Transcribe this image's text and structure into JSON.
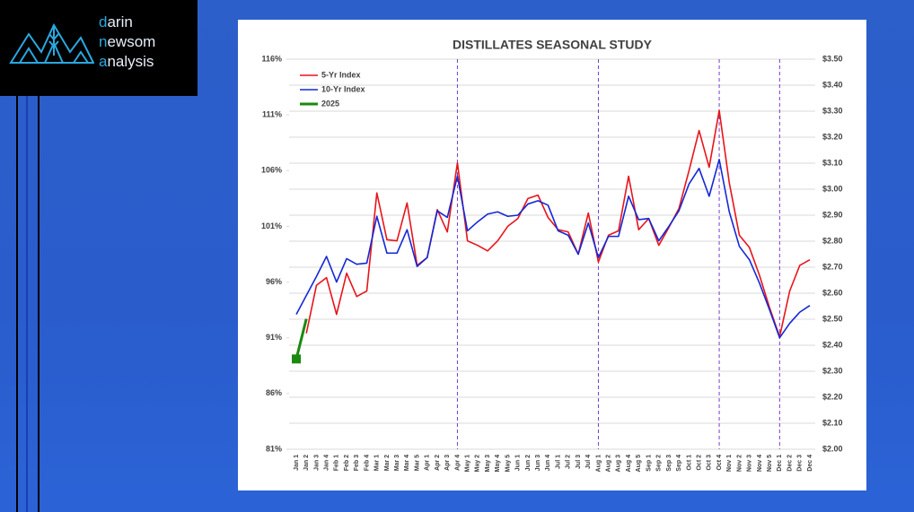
{
  "logo": {
    "lines": [
      "darin",
      "newsom",
      "analysis"
    ]
  },
  "chart_data": {
    "type": "line",
    "title": "DISTILLATES SEASONAL STUDY",
    "categories": [
      "Jan 1",
      "Jan 2",
      "Jan 3",
      "Jan 4",
      "Feb 1",
      "Feb 2",
      "Feb 3",
      "Feb 4",
      "Mar 1",
      "Mar 2",
      "Mar 3",
      "Mar 4",
      "Mar 5",
      "Apr 1",
      "Apr 2",
      "Apr 3",
      "Apr 4",
      "May 1",
      "May 2",
      "May 3",
      "May 4",
      "May 5",
      "Jun 1",
      "Jun 2",
      "Jun 3",
      "Jun 4",
      "Jul 1",
      "Jul 2",
      "Jul 3",
      "Jul 4",
      "Aug 1",
      "Aug 2",
      "Aug 3",
      "Aug 4",
      "Aug 5",
      "Sep 1",
      "Sep 2",
      "Sep 3",
      "Sep 4",
      "Oct 1",
      "Oct 2",
      "Oct 3",
      "Oct 4",
      "Nov 1",
      "Nov 2",
      "Nov 3",
      "Nov 4",
      "Nov 5",
      "Dec 1",
      "Dec 2",
      "Dec 3",
      "Dec 4"
    ],
    "series": [
      {
        "name": "5-Yr Index",
        "color": "#e8141b",
        "values": [
          null,
          91.4,
          95.7,
          96.4,
          93.1,
          96.8,
          94.7,
          95.2,
          104.0,
          99.8,
          99.7,
          103.1,
          97.5,
          98.2,
          102.5,
          100.5,
          106.7,
          99.7,
          99.3,
          98.8,
          99.7,
          101.0,
          101.7,
          103.5,
          103.8,
          101.8,
          100.7,
          100.5,
          98.5,
          102.2,
          97.8,
          100.2,
          100.6,
          105.5,
          100.7,
          101.7,
          99.3,
          100.9,
          102.6,
          106.0,
          109.6,
          106.3,
          111.4,
          104.9,
          100.2,
          99.1,
          96.6,
          93.7,
          91.1,
          95.2,
          97.5,
          98.0
        ]
      },
      {
        "name": "10-Yr Index",
        "color": "#1528d6",
        "values": [
          93.1,
          94.8,
          96.5,
          98.3,
          96.0,
          98.1,
          97.6,
          97.7,
          101.9,
          98.6,
          98.6,
          100.7,
          97.4,
          98.2,
          102.4,
          101.8,
          105.5,
          100.6,
          101.4,
          102.1,
          102.3,
          101.9,
          102.0,
          103.0,
          103.3,
          102.9,
          100.6,
          100.2,
          98.5,
          101.3,
          98.2,
          100.1,
          100.1,
          103.7,
          101.6,
          101.7,
          99.7,
          101.0,
          102.4,
          104.8,
          106.2,
          103.7,
          107.0,
          102.3,
          99.2,
          98.0,
          95.9,
          93.5,
          91.0,
          92.3,
          93.3,
          93.9
        ]
      },
      {
        "name": "2025",
        "color": "#1a8a10",
        "values": [
          89.1,
          92.7,
          null,
          null,
          null,
          null,
          null,
          null,
          null,
          null,
          null,
          null,
          null,
          null,
          null,
          null,
          null,
          null,
          null,
          null,
          null,
          null,
          null,
          null,
          null,
          null,
          null,
          null,
          null,
          null,
          null,
          null,
          null,
          null,
          null,
          null,
          null,
          null,
          null,
          null,
          null,
          null,
          null,
          null,
          null,
          null,
          null,
          null,
          null,
          null,
          null,
          null
        ]
      }
    ],
    "ylim": [
      81,
      116
    ],
    "yticks": [
      {
        "value": 81,
        "label": "81%"
      },
      {
        "value": 86,
        "label": "86%"
      },
      {
        "value": 91,
        "label": "91%"
      },
      {
        "value": 96,
        "label": "96%"
      },
      {
        "value": 101,
        "label": "101%"
      },
      {
        "value": 106,
        "label": "106%"
      },
      {
        "value": 111,
        "label": "111%"
      },
      {
        "value": 116,
        "label": "116%"
      }
    ],
    "y2lim": [
      2.0,
      3.5
    ],
    "y2ticks": [
      {
        "value": 2.0,
        "label": "$2.00"
      },
      {
        "value": 2.1,
        "label": "$2.10"
      },
      {
        "value": 2.2,
        "label": "$2.20"
      },
      {
        "value": 2.3,
        "label": "$2.30"
      },
      {
        "value": 2.4,
        "label": "$2.40"
      },
      {
        "value": 2.5,
        "label": "$2.50"
      },
      {
        "value": 2.6,
        "label": "$2.60"
      },
      {
        "value": 2.7,
        "label": "$2.70"
      },
      {
        "value": 2.8,
        "label": "$2.80"
      },
      {
        "value": 2.9,
        "label": "$2.90"
      },
      {
        "value": 3.0,
        "label": "$3.00"
      },
      {
        "value": 3.1,
        "label": "$3.10"
      },
      {
        "value": 3.2,
        "label": "$3.20"
      },
      {
        "value": 3.3,
        "label": "$3.30"
      },
      {
        "value": 3.4,
        "label": "$3.40"
      },
      {
        "value": 3.5,
        "label": "$3.50"
      }
    ],
    "grid": true,
    "legend": "upper left",
    "vertical_markers": [
      16,
      30,
      42,
      48
    ],
    "vertical_marker_color": "#7a3ad0"
  }
}
